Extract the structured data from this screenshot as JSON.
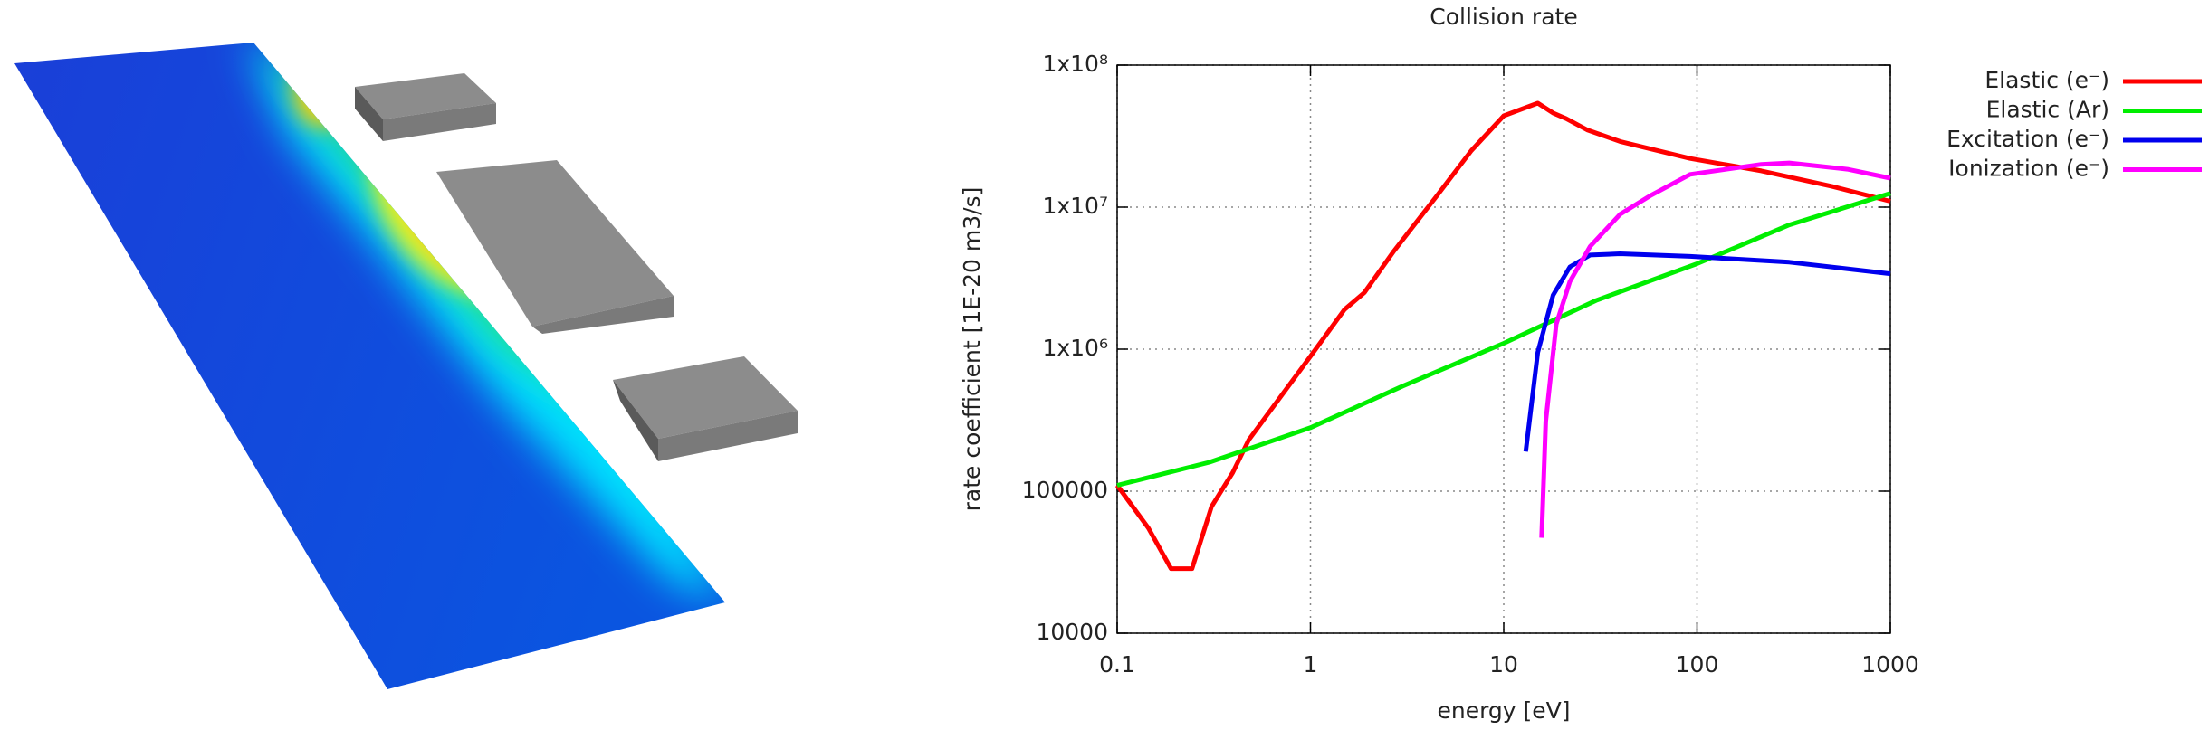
{
  "chart_data": {
    "type": "line",
    "title": "Collision rate",
    "x_label": "energy [eV]",
    "y_label": "rate coefficient [1E-20 m3/s]",
    "xlog": true,
    "ylog": true,
    "grid": true,
    "legend": "outside-right",
    "xlim": [
      0.1,
      1000
    ],
    "xticks": [
      0.1,
      1,
      10,
      100,
      1000
    ],
    "ylim": [
      10000,
      100000000
    ],
    "yticks": [
      10000,
      100000,
      {
        "value": 1000000,
        "label": "1x10⁶"
      },
      {
        "value": 10000000,
        "label": "1x10⁷"
      },
      {
        "value": 100000000,
        "label": "1x10⁸"
      }
    ],
    "series": [
      {
        "name": "Elastic (e⁻)",
        "color": "#ff0000",
        "x": [
          0.1,
          0.145,
          0.19,
          0.244,
          0.308,
          0.396,
          0.48,
          1,
          1.5,
          1.9,
          2.7,
          4.5,
          6.8,
          10,
          15,
          18,
          21,
          27,
          40,
          92,
          215,
          500,
          1000
        ],
        "values": [
          110000,
          55000,
          28500,
          28500,
          78000,
          135000,
          230000,
          890000,
          1900000,
          2500000,
          4900000,
          12000000,
          25000000,
          44000000,
          54000000,
          46000000,
          42000000,
          35000000,
          29000000,
          22000000,
          18000000,
          14000000,
          11000000
        ]
      },
      {
        "name": "Elastic (Ar)",
        "color": "#00ee00",
        "x": [
          0.1,
          0.3,
          1,
          3,
          10,
          30,
          100,
          300,
          1000
        ],
        "values": [
          110000,
          160000,
          280000,
          550000,
          1100000,
          2200000,
          4000000,
          7500000,
          12500000
        ]
      },
      {
        "name": "Excitation (e⁻)",
        "color": "#0000ee",
        "x": [
          13,
          15,
          18,
          22,
          28,
          40,
          92,
          300,
          1000
        ],
        "values": [
          190000,
          950000,
          2400000,
          3800000,
          4600000,
          4700000,
          4500000,
          4100000,
          3400000
        ]
      },
      {
        "name": "Ionization (e⁻)",
        "color": "#ff00ff",
        "x": [
          15.7,
          16.5,
          18.7,
          22,
          28,
          40,
          57,
          92,
          215,
          300,
          600,
          1000
        ],
        "values": [
          47000,
          310000,
          1500000,
          3000000,
          5300000,
          8900000,
          12000000,
          17000000,
          20000000,
          20500000,
          18500000,
          16000000
        ]
      }
    ]
  }
}
